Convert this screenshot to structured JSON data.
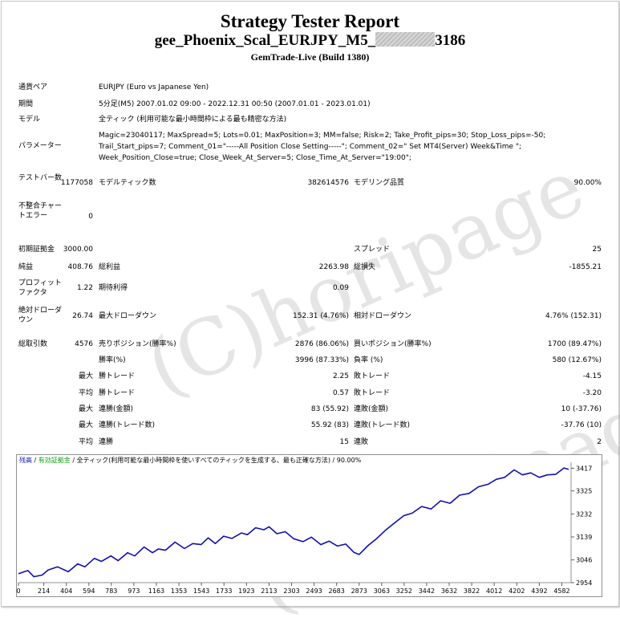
{
  "report": {
    "title": "Strategy Tester Report",
    "ea_name_prefix": "gee_Phoenix_Scal_EURJPY_M5_",
    "ea_name_suffix": "3186",
    "server": "GemTrade-Live (Build 1380)"
  },
  "info": {
    "symbol_label": "通貨ペア",
    "symbol_value": "EURJPY (Euro vs Japanese Yen)",
    "period_label": "期間",
    "period_value": "5分足(M5) 2007.01.02 09:00 - 2022.12.31 00:50 (2007.01.01 - 2023.01.01)",
    "model_label": "モデル",
    "model_value": "全ティック (利用可能な最小時間枠による最も精密な方法)",
    "params_label": "パラメーター",
    "params_lines": [
      "Magic=23040117; MaxSpread=5; Lots=0.01; MaxPosition=3; MM=false; Risk=2; Take_Profit_pips=30; Stop_Loss_pips=-50;",
      "Trail_Start_pips=7; Comment_01=\"-----All Position Close Setting-----\"; Comment_02=\" Set MT4(Server) Week&Time \";",
      "Week_Position_Close=true; Close_Week_At_Server=5; Close_Time_At_Server=\"19:00\";"
    ]
  },
  "stats": {
    "bars_label": "テストバー数",
    "bars_value": "1177058",
    "ticks_label": "モデルティック数",
    "ticks_value": "382614576",
    "quality_label": "モデリング品質",
    "quality_value": "90.00%",
    "mismatch_label": "不整合チャートエラー",
    "mismatch_value": "0",
    "deposit_label": "初期証拠金",
    "deposit_value": "3000.00",
    "spread_label": "スプレッド",
    "spread_value": "25",
    "net_label": "純益",
    "net_value": "408.76",
    "gross_profit_label": "総利益",
    "gross_profit_value": "2263.98",
    "gross_loss_label": "総損失",
    "gross_loss_value": "-1855.21",
    "pf_label": "プロフィットファクタ",
    "pf_value": "1.22",
    "expected_label": "期待利得",
    "expected_value": "0.09",
    "abs_dd_label": "絶対ドローダウン",
    "abs_dd_value": "26.74",
    "max_dd_label": "最大ドローダウン",
    "max_dd_value": "152.31 (4.76%)",
    "rel_dd_label": "相対ドローダウン",
    "rel_dd_value": "4.76% (152.31)",
    "total_trades_label": "総取引数",
    "total_trades_value": "4576",
    "short_label": "売りポジション(勝率%)",
    "short_value": "2876 (86.06%)",
    "long_label": "買いポジション(勝率%)",
    "long_value": "1700 (89.47%)",
    "win_rate_label": "勝率(%)",
    "win_rate_value": "3996 (87.33%)",
    "loss_rate_label": "負率 (%)",
    "loss_rate_value": "580 (12.67%)",
    "max_label": "最大",
    "avg_label": "平均",
    "win_trade_label": "勝トレード",
    "lose_trade_label": "敗トレード",
    "max_win_value": "2.25",
    "max_loss_value": "-4.15",
    "avg_win_value": "0.57",
    "avg_loss_value": "-3.20",
    "cons_win_money_label": "連勝(金額)",
    "cons_win_money_value": "83 (55.92)",
    "cons_loss_money_label": "連敗(金額)",
    "cons_loss_money_value": "10 (-37.76)",
    "cons_win_trades_label": "連勝(トレード数)",
    "cons_win_trades_value": "55.92 (83)",
    "cons_loss_trades_label": "連敗(トレード数)",
    "cons_loss_trades_value": "-37.76 (10)",
    "avg_cons_win_label": "連勝",
    "avg_cons_win_value": "15",
    "avg_cons_loss_label": "連敗",
    "avg_cons_loss_value": "2"
  },
  "chart_legend": {
    "balance": "残高",
    "sep1": " / ",
    "equity": "有効証拠金",
    "sep2": " / ",
    "model": "全ティック(利用可能な最小時間枠を使いすべてのティックを生成する、最も正確な方法)",
    "sep3": " / ",
    "quality": "90.00%",
    "balance_color": "#1010b0",
    "equity_color": "#10a010"
  },
  "watermark": "(C)horipage",
  "chart_data": {
    "type": "line",
    "x_ticks": [
      0,
      214,
      404,
      594,
      783,
      973,
      1163,
      1353,
      1543,
      1733,
      1923,
      2113,
      2303,
      2493,
      2683,
      2873,
      3063,
      3252,
      3442,
      3632,
      3822,
      4012,
      4202,
      4392,
      4582
    ],
    "y_ticks": [
      2954,
      3046,
      3139,
      3232,
      3325,
      3417
    ],
    "xlim": [
      0,
      4660
    ],
    "ylim": [
      2954,
      3428
    ],
    "line_color": "#1010b0",
    "series": [
      {
        "name": "残高",
        "x": [
          0,
          80,
          130,
          200,
          250,
          330,
          420,
          500,
          560,
          640,
          700,
          780,
          840,
          920,
          980,
          1060,
          1130,
          1180,
          1240,
          1320,
          1400,
          1470,
          1540,
          1600,
          1660,
          1730,
          1800,
          1880,
          1930,
          2000,
          2070,
          2113,
          2180,
          2250,
          2320,
          2400,
          2470,
          2550,
          2620,
          2690,
          2760,
          2830,
          2873,
          2950,
          3020,
          3100,
          3170,
          3250,
          3320,
          3400,
          3480,
          3560,
          3640,
          3720,
          3800,
          3880,
          3960,
          4030,
          4100,
          4180,
          4250,
          4320,
          4392,
          4460,
          4530,
          4600,
          4640
        ],
        "y": [
          2990,
          3003,
          2978,
          2985,
          3005,
          3018,
          2998,
          3030,
          3018,
          3052,
          3040,
          3062,
          3043,
          3075,
          3062,
          3098,
          3075,
          3090,
          3085,
          3118,
          3092,
          3112,
          3108,
          3135,
          3112,
          3142,
          3133,
          3155,
          3148,
          3176,
          3168,
          3180,
          3152,
          3160,
          3132,
          3120,
          3138,
          3108,
          3122,
          3102,
          3110,
          3076,
          3068,
          3105,
          3132,
          3168,
          3195,
          3225,
          3235,
          3262,
          3252,
          3285,
          3275,
          3308,
          3315,
          3342,
          3352,
          3372,
          3380,
          3410,
          3390,
          3398,
          3380,
          3390,
          3392,
          3418,
          3412
        ]
      }
    ]
  }
}
